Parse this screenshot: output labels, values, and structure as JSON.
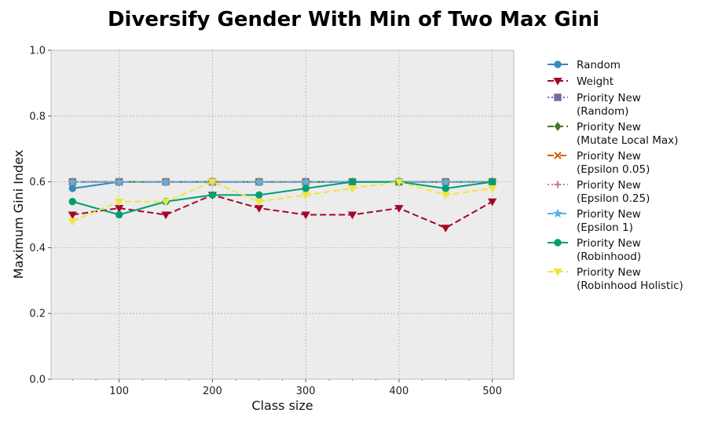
{
  "chart_data": {
    "type": "line",
    "title": "Diversify Gender With Min of Two Max Gini",
    "xlabel": "Class size",
    "ylabel": "Maximum Gini Index",
    "xlim": [
      27,
      523
    ],
    "ylim": [
      0.0,
      1.0
    ],
    "xticks": [
      100,
      200,
      300,
      400,
      500
    ],
    "yticks": [
      0.0,
      0.2,
      0.4,
      0.6,
      0.8,
      1.0
    ],
    "xtick_labels": [
      "100",
      "200",
      "300",
      "400",
      "500"
    ],
    "ytick_labels": [
      "0.0",
      "0.2",
      "0.4",
      "0.6",
      "0.8",
      "1.0"
    ],
    "grid": true,
    "legend_position": "outside-right",
    "x": [
      50,
      100,
      150,
      200,
      250,
      300,
      350,
      400,
      450,
      500
    ],
    "series": [
      {
        "name": "Random",
        "color": "#348abd",
        "dash": "solid",
        "marker": "circle",
        "values": [
          0.58,
          0.6,
          0.6,
          0.6,
          0.6,
          0.6,
          0.6,
          0.6,
          0.6,
          0.6
        ]
      },
      {
        "name": "Priority New\n(Random)",
        "color": "#7a68a6",
        "dash": "dotted",
        "marker": "square",
        "values": [
          0.6,
          0.6,
          0.6,
          0.6,
          0.6,
          0.6,
          0.6,
          0.6,
          0.6,
          0.6
        ]
      },
      {
        "name": "Priority New\n(Mutate Local Max)",
        "color": "#467821",
        "dash": "dashed",
        "marker": "diamond",
        "values": [
          0.6,
          0.6,
          0.6,
          0.6,
          0.6,
          0.6,
          0.6,
          0.6,
          0.6,
          0.6
        ]
      },
      {
        "name": "Priority New\n(Epsilon 0.05)",
        "color": "#d55e00",
        "dash": "dashdot",
        "marker": "x",
        "values": [
          0.6,
          0.6,
          0.6,
          0.6,
          0.6,
          0.6,
          0.6,
          0.6,
          0.6,
          0.6
        ]
      },
      {
        "name": "Priority New\n(Epsilon 0.25)",
        "color": "#cc79a7",
        "dash": "dotted",
        "marker": "plus",
        "values": [
          0.6,
          0.6,
          0.6,
          0.6,
          0.6,
          0.6,
          0.6,
          0.6,
          0.6,
          0.6
        ]
      },
      {
        "name": "Priority New\n(Epsilon 1)",
        "color": "#56b4e9",
        "dash": "dashdot",
        "marker": "star",
        "values": [
          0.6,
          0.6,
          0.6,
          0.6,
          0.6,
          0.6,
          0.6,
          0.6,
          0.6,
          0.6
        ]
      },
      {
        "name": "Weight",
        "color": "#a60628",
        "dash": "dashed",
        "marker": "triangle-down",
        "values": [
          0.5,
          0.52,
          0.5,
          0.56,
          0.52,
          0.5,
          0.5,
          0.52,
          0.46,
          0.54
        ]
      },
      {
        "name": "Priority New\n(Robinhood)",
        "color": "#009e73",
        "dash": "solid",
        "marker": "circle",
        "values": [
          0.54,
          0.5,
          0.54,
          0.56,
          0.56,
          0.58,
          0.6,
          0.6,
          0.58,
          0.6
        ]
      },
      {
        "name": "Priority New\n(Robinhood Holistic)",
        "color": "#f0e442",
        "dash": "dashed",
        "marker": "triangle-down",
        "values": [
          0.48,
          0.54,
          0.54,
          0.6,
          0.54,
          0.56,
          0.58,
          0.6,
          0.56,
          0.58
        ]
      }
    ],
    "legend_order": [
      "Random",
      "Weight",
      "Priority New\n(Random)",
      "Priority New\n(Mutate Local Max)",
      "Priority New\n(Epsilon 0.05)",
      "Priority New\n(Epsilon 0.25)",
      "Priority New\n(Epsilon 1)",
      "Priority New\n(Robinhood)",
      "Priority New\n(Robinhood Holistic)"
    ]
  }
}
